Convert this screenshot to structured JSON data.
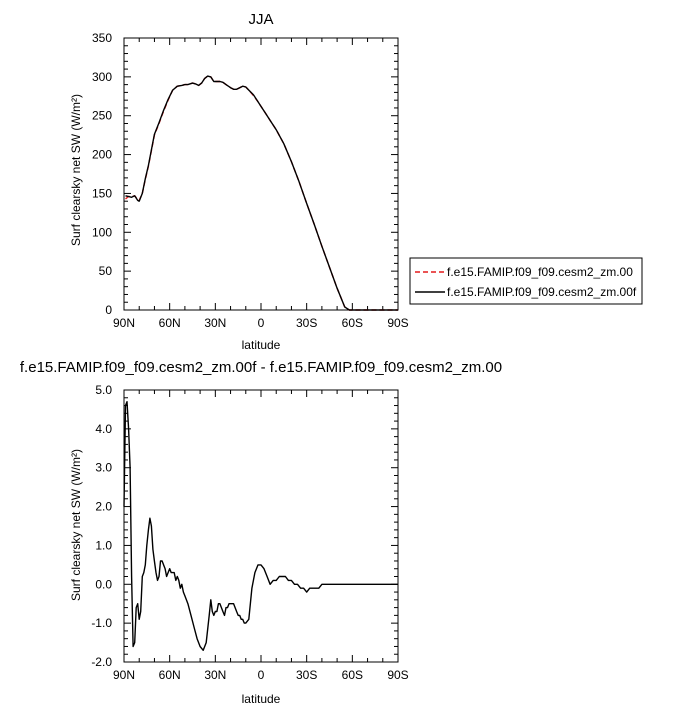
{
  "chart_data": [
    {
      "type": "line",
      "title": "JJA",
      "xlabel": "latitude",
      "ylabel": "Surf clearsky net SW (W/m²)",
      "ylim": [
        0,
        350
      ],
      "yticks": [
        "0",
        "50",
        "100",
        "150",
        "200",
        "250",
        "300",
        "350"
      ],
      "xticks": [
        "90N",
        "60N",
        "30N",
        "0",
        "30S",
        "60S",
        "90S"
      ],
      "xlim": [
        90,
        -90
      ],
      "legend": "right",
      "series": [
        {
          "name": "f.e15.FAMIP.f09_f09.cesm2_zm.00",
          "color": "#e31a1c",
          "dash": "dashed",
          "x": [
            89,
            87,
            85,
            83,
            81,
            80,
            78,
            76,
            74,
            72,
            70,
            67,
            64,
            61,
            58,
            55,
            52,
            50,
            48,
            45,
            43,
            41,
            39,
            37,
            35,
            33,
            31,
            29,
            27,
            25,
            23,
            20,
            18,
            16,
            14,
            12,
            10,
            8,
            5,
            2,
            0,
            -3,
            -6,
            -10,
            -15,
            -20,
            -25,
            -30,
            -35,
            -40,
            -45,
            -50,
            -55,
            -58,
            -60,
            -62,
            -64,
            -66,
            -70,
            -75,
            -80,
            -85,
            -90
          ],
          "y": [
            143,
            146,
            146,
            147,
            142,
            141,
            150,
            168,
            185,
            205,
            225,
            240,
            256,
            270,
            283,
            288,
            289,
            290,
            290,
            292,
            291,
            289,
            292,
            298,
            301,
            300,
            294,
            294,
            294,
            293,
            290,
            286,
            284,
            284,
            286,
            288,
            287,
            283,
            276,
            268,
            262,
            253,
            244,
            232,
            214,
            191,
            165,
            137,
            110,
            82,
            55,
            28,
            4,
            0,
            0,
            0,
            0,
            0,
            0,
            0,
            0,
            0,
            0
          ]
        },
        {
          "name": "f.e15.FAMIP.f09_f09.cesm2_zm.00f",
          "color": "#000000",
          "dash": "solid",
          "x": [
            89,
            87,
            85,
            83,
            81,
            80,
            78,
            76,
            74,
            72,
            70,
            67,
            64,
            61,
            58,
            55,
            52,
            50,
            48,
            45,
            43,
            41,
            39,
            37,
            35,
            33,
            31,
            29,
            27,
            25,
            23,
            20,
            18,
            16,
            14,
            12,
            10,
            8,
            5,
            2,
            0,
            -3,
            -6,
            -10,
            -15,
            -20,
            -25,
            -30,
            -35,
            -40,
            -45,
            -50,
            -55,
            -58,
            -60,
            -62,
            -64,
            -66,
            -70,
            -75,
            -80,
            -85,
            -90
          ],
          "y": [
            147,
            146,
            145,
            147,
            141,
            140,
            150,
            169,
            186,
            206,
            226,
            241,
            257,
            271,
            283,
            288,
            289,
            290,
            290,
            292,
            291,
            289,
            292,
            298,
            301,
            300,
            294,
            294,
            294,
            293,
            290,
            286,
            284,
            284,
            286,
            288,
            287,
            283,
            277,
            268,
            262,
            253,
            244,
            232,
            214,
            191,
            165,
            137,
            110,
            82,
            55,
            28,
            4,
            0,
            0,
            0,
            0,
            0,
            0,
            0,
            0,
            0,
            0
          ]
        }
      ]
    },
    {
      "type": "line",
      "title": "f.e15.FAMIP.f09_f09.cesm2_zm.00f - f.e15.FAMIP.f09_f09.cesm2_zm.00",
      "xlabel": "latitude",
      "ylabel": "Surf clearsky net SW (W/m²)",
      "ylim": [
        -2.0,
        5.0
      ],
      "yticks": [
        "-2.0",
        "-1.0",
        "0.0",
        "1.0",
        "2.0",
        "3.0",
        "4.0",
        "5.0"
      ],
      "xticks": [
        "90N",
        "60N",
        "30N",
        "0",
        "30S",
        "60S",
        "90S"
      ],
      "xlim": [
        90,
        -90
      ],
      "series": [
        {
          "color": "#000000",
          "x": [
            90,
            89,
            88,
            87,
            86,
            85,
            84,
            83,
            82,
            81,
            80,
            79,
            78,
            77,
            76,
            75,
            74,
            73,
            72,
            71,
            70,
            69,
            68,
            67,
            66,
            65,
            64,
            63,
            62,
            61,
            60,
            59,
            58,
            57,
            56,
            55,
            54,
            53,
            52,
            51,
            50,
            48,
            46,
            44,
            42,
            40,
            38,
            36,
            34,
            33,
            32,
            31,
            30,
            29,
            28,
            27,
            26,
            25,
            24,
            23,
            22,
            21,
            20,
            19,
            18,
            17,
            16,
            15,
            14,
            13,
            12,
            11,
            10,
            8,
            6,
            4,
            2,
            0,
            -2,
            -4,
            -6,
            -8,
            -10,
            -12,
            -14,
            -16,
            -18,
            -20,
            -22,
            -24,
            -26,
            -28,
            -30,
            -32,
            -34,
            -36,
            -38,
            -40,
            -42,
            -44,
            -46,
            -48,
            -50,
            -52,
            -54,
            -56,
            -58,
            -60,
            -62,
            -64,
            -66,
            -68,
            -70,
            -75,
            -80,
            -85,
            -90
          ],
          "y": [
            2.0,
            4.6,
            4.7,
            4.0,
            3.0,
            0.2,
            -1.6,
            -1.5,
            -0.6,
            -0.5,
            -0.9,
            -0.7,
            0.2,
            0.3,
            0.5,
            1.0,
            1.4,
            1.7,
            1.5,
            0.9,
            0.6,
            0.3,
            0.1,
            0.2,
            0.6,
            0.6,
            0.5,
            0.4,
            0.2,
            0.3,
            0.4,
            0.3,
            0.3,
            0.3,
            0.1,
            0.2,
            0.1,
            -0.1,
            0.0,
            -0.2,
            -0.3,
            -0.5,
            -0.8,
            -1.1,
            -1.4,
            -1.6,
            -1.7,
            -1.5,
            -0.8,
            -0.4,
            -0.7,
            -0.8,
            -0.7,
            -0.7,
            -0.5,
            -0.5,
            -0.6,
            -0.7,
            -0.8,
            -0.6,
            -0.6,
            -0.5,
            -0.5,
            -0.5,
            -0.5,
            -0.6,
            -0.7,
            -0.8,
            -0.8,
            -0.9,
            -0.9,
            -1.0,
            -1.0,
            -0.9,
            -0.1,
            0.3,
            0.5,
            0.5,
            0.4,
            0.2,
            0.0,
            0.1,
            0.1,
            0.2,
            0.2,
            0.2,
            0.1,
            0.1,
            0.0,
            0.0,
            -0.1,
            -0.1,
            -0.2,
            -0.1,
            -0.1,
            -0.1,
            -0.1,
            0.0,
            0.0,
            0.0,
            0.0,
            0.0,
            0.0,
            0.0,
            0.0,
            0.0,
            0.0,
            0.0,
            0.0,
            0.0,
            0.0,
            0.0,
            0.0,
            0.0,
            0.0,
            0.0,
            0.0
          ]
        }
      ]
    }
  ]
}
